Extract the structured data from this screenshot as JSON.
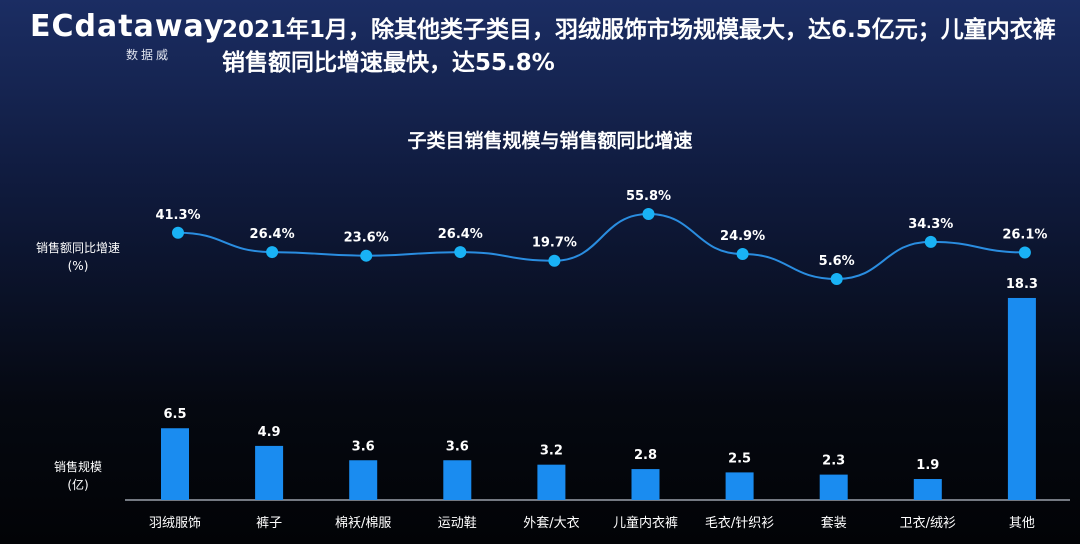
{
  "logo": {
    "main": "ECdataway",
    "sub": "数据威"
  },
  "headline": "2021年1月，除其他类子类目，羽绒服饰市场规模最大，达6.5亿元；儿童内衣裤销售额同比增速最快，达55.8%",
  "chart_data": {
    "type": "bar+line",
    "title": "子类目销售规模与销售额同比增速",
    "categories": [
      "羽绒服饰",
      "裤子",
      "棉袄/棉服",
      "运动鞋",
      "外套/大衣",
      "儿童内衣裤",
      "毛衣/针织衫",
      "套装",
      "卫衣/绒衫",
      "其他"
    ],
    "series": [
      {
        "name": "销售规模(亿)",
        "type": "bar",
        "label": "销售规模",
        "unit": "(亿)",
        "values": [
          6.5,
          4.9,
          3.6,
          3.6,
          3.2,
          2.8,
          2.5,
          2.3,
          1.9,
          18.3
        ],
        "color": "#1a8cf0"
      },
      {
        "name": "销售额同比增速(%)",
        "type": "line",
        "label": "销售额同比增速",
        "unit": "(%)",
        "values": [
          41.3,
          26.4,
          23.6,
          26.4,
          19.7,
          55.8,
          24.9,
          5.6,
          34.3,
          26.1
        ],
        "color": "#2a8de0"
      }
    ]
  }
}
